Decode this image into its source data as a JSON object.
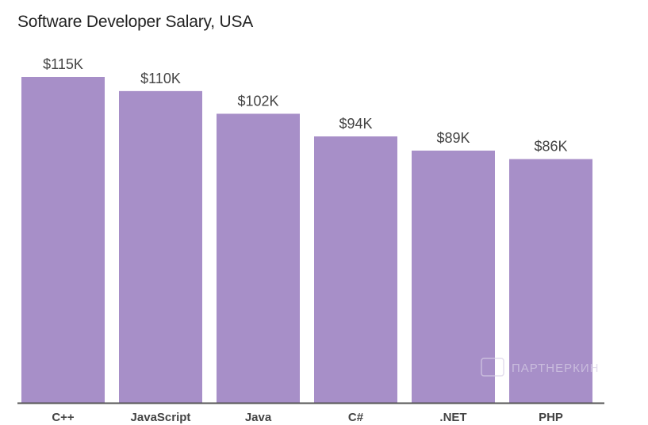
{
  "chart_data": {
    "type": "bar",
    "title": "Software Developer Salary, USA",
    "categories": [
      "C++",
      "JavaScript",
      "Java",
      "C#",
      ".NET",
      "PHP"
    ],
    "values": [
      115,
      110,
      102,
      94,
      89,
      86
    ],
    "data_labels": [
      "$115K",
      "$110K",
      "$102K",
      "$94K",
      "$89K",
      "$86K"
    ],
    "xlabel": "",
    "ylabel": "",
    "ylim": [
      0,
      115
    ],
    "unit": "thousand USD",
    "grid": false,
    "legend": "none",
    "bar_color": "#a78fc8"
  },
  "watermark": "ПАРТНЕРКИН"
}
